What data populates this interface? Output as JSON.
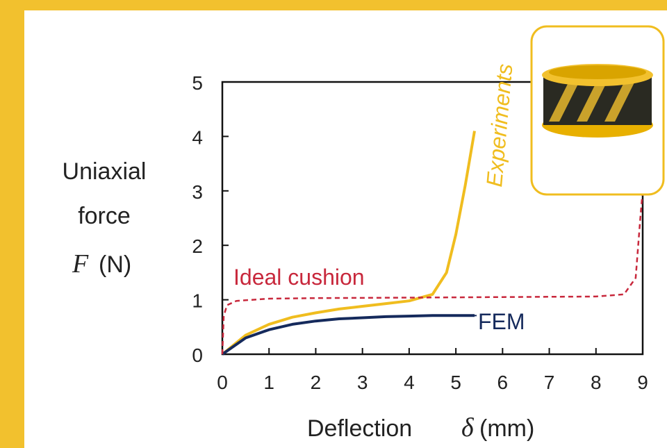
{
  "chart_data": {
    "type": "line",
    "ylabel_lines": [
      "Uniaxial",
      "force"
    ],
    "ylabel_symbol": "F",
    "ylabel_unit": "(N)",
    "xlabel": "Deflection",
    "xlabel_symbol": "δ",
    "xlabel_unit": "(mm)",
    "xlim": [
      0,
      9
    ],
    "xticks": [
      0,
      1,
      2,
      3,
      4,
      5,
      6,
      7,
      8,
      9
    ],
    "ylim": [
      0,
      5
    ],
    "yticks": [
      0,
      1,
      2,
      3,
      4,
      5
    ],
    "series": [
      {
        "name": "Experiments",
        "color": "#f0bd1f",
        "dashed": false,
        "x": [
          0,
          0.5,
          1,
          1.5,
          2,
          2.5,
          3,
          3.5,
          4,
          4.5,
          4.8,
          5,
          5.2,
          5.4
        ],
        "values": [
          0,
          0.35,
          0.55,
          0.68,
          0.76,
          0.83,
          0.88,
          0.93,
          0.98,
          1.1,
          1.5,
          2.2,
          3.1,
          4.1
        ]
      },
      {
        "name": "FEM",
        "color": "#152a5c",
        "dashed": false,
        "x": [
          0,
          0.5,
          1,
          1.5,
          2,
          2.5,
          3,
          3.5,
          4,
          4.5,
          5,
          5.4
        ],
        "values": [
          0,
          0.3,
          0.45,
          0.55,
          0.61,
          0.65,
          0.67,
          0.69,
          0.7,
          0.71,
          0.71,
          0.71
        ]
      },
      {
        "name": "Ideal cushion",
        "color": "#c8283c",
        "dashed": true,
        "x": [
          0,
          0.03,
          0.1,
          0.3,
          1,
          2,
          4,
          6,
          8,
          8.6,
          8.85,
          8.95,
          9
        ],
        "values": [
          0,
          0.7,
          0.9,
          0.98,
          1.02,
          1.03,
          1.04,
          1.05,
          1.06,
          1.1,
          1.4,
          2.5,
          3
        ]
      }
    ]
  }
}
